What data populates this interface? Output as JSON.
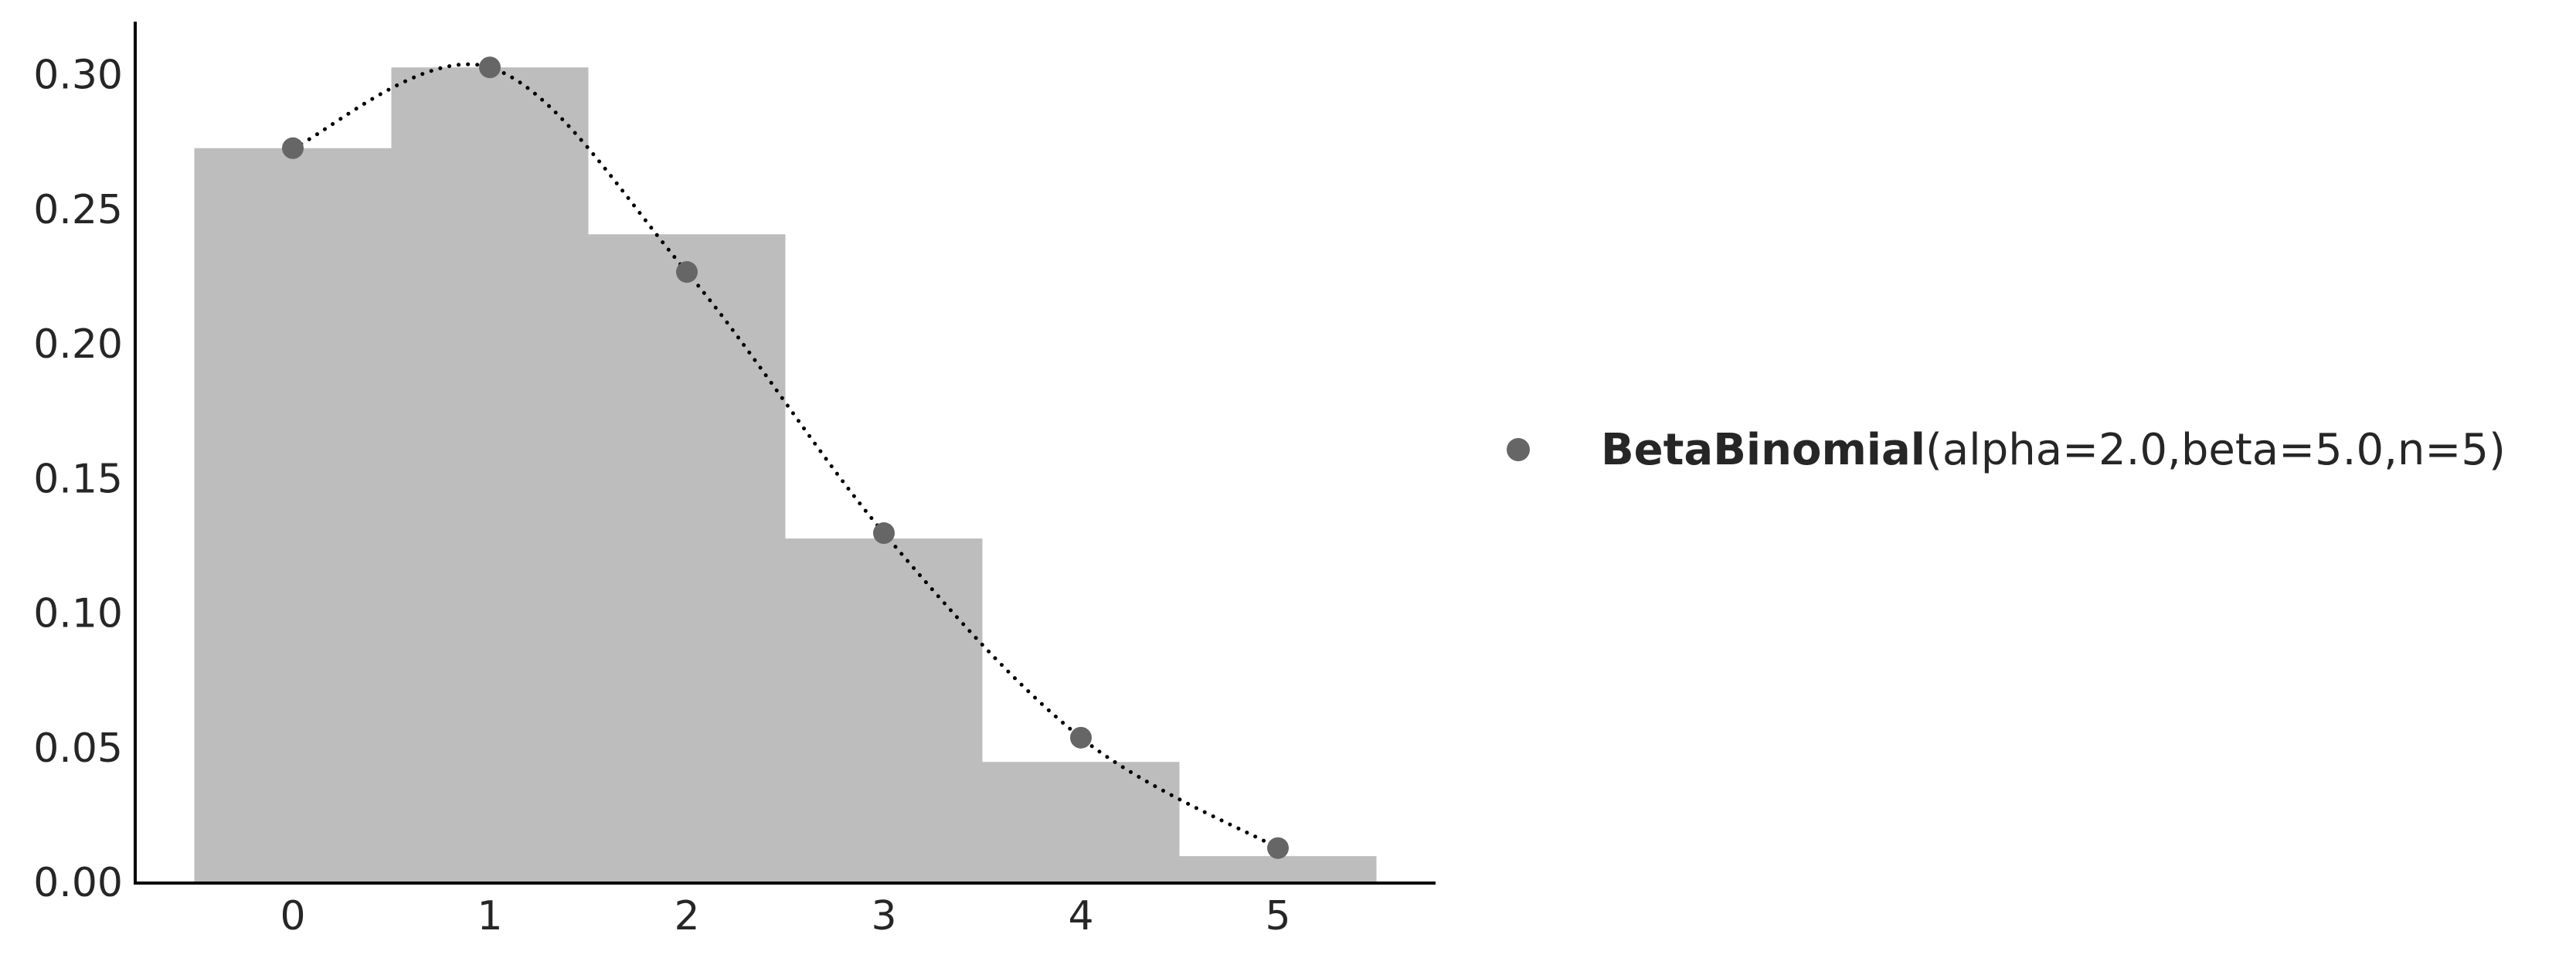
{
  "chart_data": {
    "type": "bar",
    "categories": [
      "0",
      "1",
      "2",
      "3",
      "4",
      "5"
    ],
    "x": [
      0,
      1,
      2,
      3,
      4,
      5
    ],
    "series": [
      {
        "style": "histogram-bars",
        "color": "#bdbdbd",
        "values": [
          0.273,
          0.303,
          0.241,
          0.128,
          0.045,
          0.01
        ]
      },
      {
        "style": "points-with-dotted-curve",
        "color": "#666666",
        "values": [
          0.273,
          0.303,
          0.227,
          0.13,
          0.054,
          0.013
        ]
      }
    ],
    "yticks": [
      "0.00",
      "0.05",
      "0.10",
      "0.15",
      "0.20",
      "0.25",
      "0.30"
    ],
    "ylim": [
      0,
      0.32
    ],
    "xlim": [
      -0.8,
      5.8
    ],
    "grid": false,
    "legend": {
      "placement": "right",
      "marker_color": "#666666",
      "bold_text": "BetaBinomial",
      "plain_text": "(alpha=2.0,beta=5.0,n=5)"
    }
  }
}
